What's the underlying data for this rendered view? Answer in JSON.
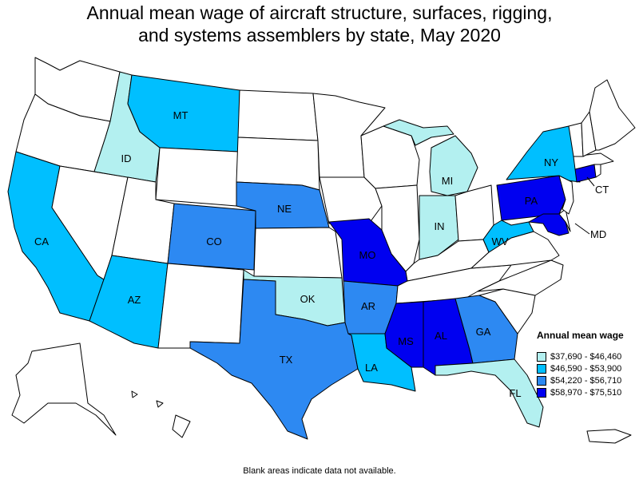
{
  "title": {
    "line1": "Annual mean wage of aircraft structure, surfaces, rigging,",
    "line2": "and systems assemblers by state, May 2020"
  },
  "legend": {
    "title": "Annual mean wage",
    "items": [
      {
        "label": "$37,690 - $46,460",
        "color": "#b3f0f0"
      },
      {
        "label": "$46,590 - $53,900",
        "color": "#00bfff"
      },
      {
        "label": "$54,220 - $56,710",
        "color": "#2d89f2"
      },
      {
        "label": "$58,970 - $75,510",
        "color": "#0000f0"
      }
    ]
  },
  "footnote": "Blank areas indicate data not available.",
  "colors": {
    "no_data": "#ffffff",
    "border": "#000000"
  },
  "states": {
    "WA": {
      "label": "",
      "tier": null
    },
    "OR": {
      "label": "",
      "tier": null
    },
    "CA": {
      "label": "CA",
      "tier": 1
    },
    "NV": {
      "label": "",
      "tier": null
    },
    "ID": {
      "label": "ID",
      "tier": 0
    },
    "MT": {
      "label": "MT",
      "tier": 1
    },
    "WY": {
      "label": "",
      "tier": null
    },
    "UT": {
      "label": "",
      "tier": null
    },
    "AZ": {
      "label": "AZ",
      "tier": 1
    },
    "CO": {
      "label": "CO",
      "tier": 2
    },
    "NM": {
      "label": "",
      "tier": null
    },
    "ND": {
      "label": "",
      "tier": null
    },
    "SD": {
      "label": "",
      "tier": null
    },
    "NE": {
      "label": "NE",
      "tier": 2
    },
    "KS": {
      "label": "",
      "tier": null
    },
    "OK": {
      "label": "OK",
      "tier": 0
    },
    "TX": {
      "label": "TX",
      "tier": 2
    },
    "MN": {
      "label": "",
      "tier": null
    },
    "IA": {
      "label": "",
      "tier": null
    },
    "MO": {
      "label": "MO",
      "tier": 3
    },
    "AR": {
      "label": "AR",
      "tier": 2
    },
    "LA": {
      "label": "LA",
      "tier": 1
    },
    "WI": {
      "label": "",
      "tier": null
    },
    "IL": {
      "label": "",
      "tier": null
    },
    "MI": {
      "label": "MI",
      "tier": 0
    },
    "MIU": {
      "label": "",
      "tier": 0
    },
    "IN": {
      "label": "IN",
      "tier": 0
    },
    "OH": {
      "label": "",
      "tier": null
    },
    "KY": {
      "label": "",
      "tier": null
    },
    "TN": {
      "label": "",
      "tier": null
    },
    "MS": {
      "label": "MS",
      "tier": 3
    },
    "AL": {
      "label": "AL",
      "tier": 3
    },
    "GA": {
      "label": "GA",
      "tier": 2
    },
    "FL": {
      "label": "FL",
      "tier": 0
    },
    "SC": {
      "label": "",
      "tier": null
    },
    "NC": {
      "label": "",
      "tier": null
    },
    "VA": {
      "label": "",
      "tier": null
    },
    "WV": {
      "label": "WV",
      "tier": 1
    },
    "PA": {
      "label": "PA",
      "tier": 3
    },
    "NY": {
      "label": "NY",
      "tier": 1
    },
    "MD": {
      "label": "MD",
      "tier": 3
    },
    "DE": {
      "label": "",
      "tier": null
    },
    "NJ": {
      "label": "",
      "tier": null
    },
    "CT": {
      "label": "CT",
      "tier": 3
    },
    "RI": {
      "label": "",
      "tier": null
    },
    "MA": {
      "label": "",
      "tier": null
    },
    "VT": {
      "label": "",
      "tier": null
    },
    "NH": {
      "label": "",
      "tier": null
    },
    "ME": {
      "label": "",
      "tier": null
    },
    "AK": {
      "label": "",
      "tier": null
    },
    "HI": {
      "label": "",
      "tier": null
    },
    "PR": {
      "label": "",
      "tier": null
    }
  }
}
